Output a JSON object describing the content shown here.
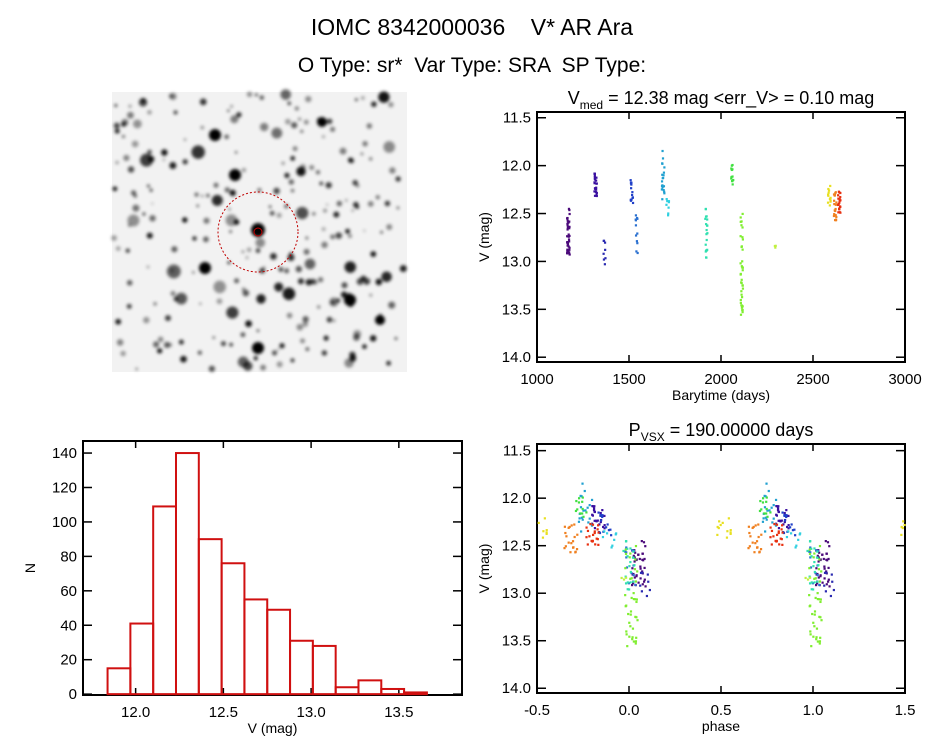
{
  "header": {
    "title": "IOMC 8342000036    V* AR Ara",
    "subtitle": "O Type: sr*  Var Type: SRA  SP Type:"
  },
  "image_panel": {
    "description_label": "star-field-image"
  },
  "chart_data": [
    {
      "type": "scatter",
      "title_main": "V",
      "title_sub": "med",
      "title_rest": " = 12.38 mag <err_V> = 0.10 mag",
      "xlabel": "Barytime (days)",
      "ylabel": "V (mag)",
      "xlim": [
        1000,
        3000
      ],
      "ylim": [
        14.05,
        11.44
      ],
      "xticks": [
        "1000",
        "1500",
        "2000",
        "2500",
        "3000"
      ],
      "xtick_values": [
        1000,
        1500,
        2000,
        2500,
        3000
      ],
      "yticks": [
        "11.5",
        "12.0",
        "12.5",
        "13.0",
        "13.5",
        "14.0"
      ],
      "ytick_values": [
        11.5,
        12.0,
        12.5,
        13.0,
        13.5,
        14.0
      ],
      "clusters": [
        {
          "t": 1170,
          "vmin": 12.45,
          "vmax": 12.93,
          "n": 40,
          "color": "#4b0a7a"
        },
        {
          "t": 1318,
          "vmin": 12.08,
          "vmax": 12.32,
          "n": 25,
          "color": "#3a10a0"
        },
        {
          "t": 1368,
          "vmin": 12.75,
          "vmax": 13.05,
          "n": 8,
          "color": "#2a2ab0"
        },
        {
          "t": 1515,
          "vmin": 12.12,
          "vmax": 12.4,
          "n": 15,
          "color": "#2040c8"
        },
        {
          "t": 1540,
          "vmin": 12.48,
          "vmax": 12.96,
          "n": 12,
          "color": "#2a70d0"
        },
        {
          "t": 1685,
          "vmin": 11.84,
          "vmax": 12.37,
          "n": 20,
          "color": "#20a0d0"
        },
        {
          "t": 1710,
          "vmin": 12.3,
          "vmax": 12.52,
          "n": 8,
          "color": "#30d0e0"
        },
        {
          "t": 1920,
          "vmin": 12.43,
          "vmax": 12.98,
          "n": 20,
          "color": "#30e0b0"
        },
        {
          "t": 2060,
          "vmin": 11.95,
          "vmax": 12.2,
          "n": 12,
          "color": "#40e040"
        },
        {
          "t": 2112,
          "vmin": 12.5,
          "vmax": 13.6,
          "n": 40,
          "color": "#80ee30"
        },
        {
          "t": 2292,
          "vmin": 12.83,
          "vmax": 12.87,
          "n": 3,
          "color": "#c0f040"
        },
        {
          "t": 2588,
          "vmin": 12.12,
          "vmax": 12.42,
          "n": 12,
          "color": "#e8e020"
        },
        {
          "t": 2620,
          "vmin": 12.25,
          "vmax": 12.6,
          "n": 20,
          "color": "#f08020"
        },
        {
          "t": 2643,
          "vmin": 12.27,
          "vmax": 12.5,
          "n": 20,
          "color": "#e83010"
        }
      ]
    },
    {
      "type": "scatter",
      "title_main": "P",
      "title_sub": "VSX",
      "title_rest": " = 190.00000 days",
      "period_days": 190.0,
      "epoch": 2110,
      "xlabel": "phase",
      "ylabel": "V (mag)",
      "xlim": [
        -0.5,
        1.5
      ],
      "ylim": [
        14.05,
        11.43
      ],
      "xticks": [
        "-0.5",
        "0.0",
        "0.5",
        "1.0",
        "1.5"
      ],
      "xtick_values": [
        -0.5,
        0.0,
        0.5,
        1.0,
        1.5
      ],
      "yticks": [
        "11.5",
        "12.0",
        "12.5",
        "13.0",
        "13.5",
        "14.0"
      ],
      "ytick_values": [
        11.5,
        12.0,
        12.5,
        13.0,
        13.5,
        14.0
      ]
    },
    {
      "type": "bar",
      "subtype": "histogram",
      "xlabel": "V (mag)",
      "ylabel": "N",
      "xlim": [
        11.7,
        13.86
      ],
      "ylim": [
        -0.5,
        147
      ],
      "bin_start": 11.84,
      "bin_width": 0.13,
      "values": [
        15,
        41,
        109,
        140,
        90,
        76,
        55,
        49,
        31,
        28,
        4,
        8,
        3,
        1
      ],
      "bar_color": "#d01010",
      "xticks": [
        "12.0",
        "12.5",
        "13.0",
        "13.5"
      ],
      "xtick_values": [
        12.0,
        12.5,
        13.0,
        13.5
      ],
      "yticks": [
        "0",
        "20",
        "40",
        "60",
        "80",
        "100",
        "120",
        "140"
      ],
      "ytick_values": [
        0,
        20,
        40,
        60,
        80,
        100,
        120,
        140
      ]
    }
  ]
}
